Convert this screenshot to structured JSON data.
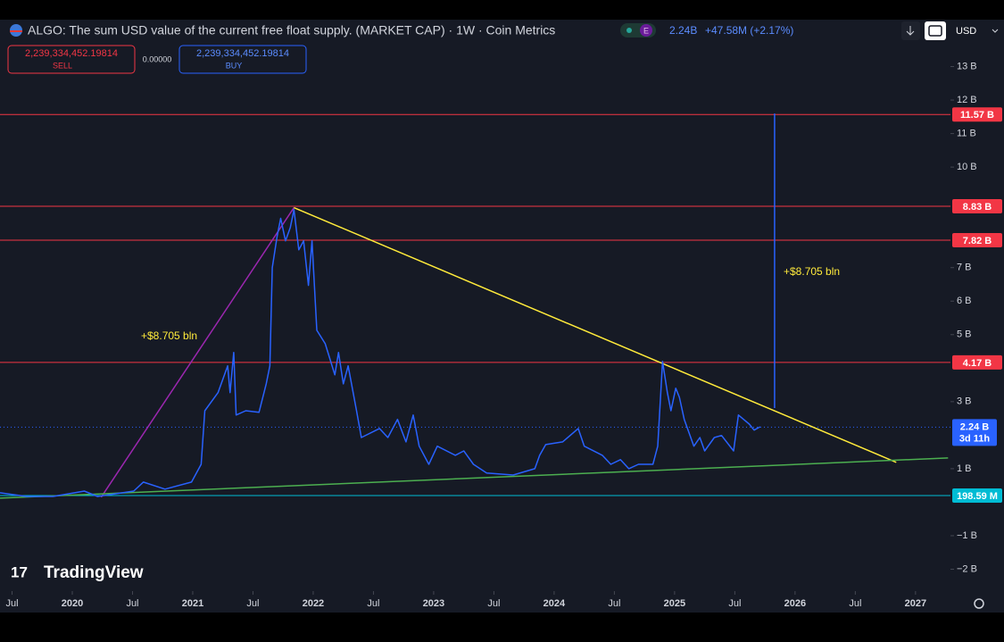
{
  "header": {
    "last": "2.24B",
    "change": "+47.58M (+2.17%)",
    "badge": "E",
    "sell_price": "2,239,334,452.19814",
    "sell": "SELL",
    "spread": "0.00000",
    "buy_price": "2,239,334,452.19814",
    "buy": "BUY",
    "currency": "USD",
    "logo": "TradingView"
  },
  "chart_data": {
    "type": "line",
    "title": "ALGO: The sum USD value of the current free float supply. (MARKET CAP) · 1W · Coin Metrics",
    "color": "#2962ff",
    "x": [
      2019.4,
      2019.62,
      2019.84,
      2020.1,
      2020.21,
      2020.36,
      2020.51,
      2020.59,
      2020.77,
      2020.99,
      2021.07,
      2021.1,
      2021.21,
      2021.29,
      2021.31,
      2021.34,
      2021.36,
      2021.44,
      2021.55,
      2021.61,
      2021.64,
      2021.66,
      2021.7,
      2021.73,
      2021.77,
      2021.81,
      2021.84,
      2021.88,
      2021.92,
      2021.96,
      2021.99,
      2022.03,
      2022.1,
      2022.18,
      2022.21,
      2022.25,
      2022.29,
      2022.36,
      2022.4,
      2022.55,
      2022.62,
      2022.7,
      2022.77,
      2022.83,
      2022.88,
      2022.96,
      2023.03,
      2023.18,
      2023.25,
      2023.33,
      2023.44,
      2023.66,
      2023.84,
      2023.88,
      2023.93,
      2024.07,
      2024.2,
      2024.25,
      2024.4,
      2024.47,
      2024.55,
      2024.62,
      2024.7,
      2024.82,
      2024.86,
      2024.9,
      2024.94,
      2024.97,
      2025.01,
      2025.04,
      2025.08,
      2025.16,
      2025.21,
      2025.25,
      2025.33,
      2025.39,
      2025.49,
      2025.53,
      2025.62,
      2025.66,
      2025.71
    ],
    "values": [
      0.28,
      0.17,
      0.17,
      0.33,
      0.17,
      0.25,
      0.33,
      0.6,
      0.39,
      0.6,
      1.13,
      2.73,
      3.27,
      4.07,
      3.27,
      4.47,
      2.6,
      2.73,
      2.68,
      3.53,
      4.07,
      7.0,
      7.93,
      8.47,
      7.8,
      8.2,
      8.73,
      7.53,
      7.8,
      6.47,
      7.8,
      5.13,
      4.73,
      3.8,
      4.47,
      3.53,
      4.07,
      2.73,
      1.93,
      2.2,
      1.93,
      2.47,
      1.8,
      2.6,
      1.67,
      1.13,
      1.67,
      1.4,
      1.53,
      1.13,
      0.87,
      0.81,
      1.0,
      1.4,
      1.72,
      1.8,
      2.2,
      1.67,
      1.4,
      1.13,
      1.27,
      1.0,
      1.13,
      1.13,
      1.67,
      4.2,
      3.27,
      2.73,
      3.4,
      3.13,
      2.47,
      1.67,
      1.93,
      1.53,
      1.93,
      1.99,
      1.53,
      2.6,
      2.33,
      2.15,
      2.25
    ],
    "xlim": [
      2019.4,
      2027.29
    ],
    "xticks": [
      {
        "value": 2019.5,
        "label": "Jul"
      },
      2020,
      {
        "value": 2020.5,
        "label": "Jul"
      },
      2021,
      {
        "value": 2021.5,
        "label": "Jul"
      },
      2022,
      {
        "value": 2022.5,
        "label": "Jul"
      },
      2023,
      {
        "value": 2023.5,
        "label": "Jul"
      },
      2024,
      {
        "value": 2024.5,
        "label": "Jul"
      },
      2025,
      {
        "value": 2025.5,
        "label": "Jul"
      },
      2026,
      {
        "value": 2026.5,
        "label": "Jul"
      },
      2027
    ],
    "ylim": [
      -2.6,
      14.4
    ],
    "yticks": [
      {
        "value": 13,
        "label": "13 B"
      },
      {
        "value": 12,
        "label": "12 B"
      },
      {
        "value": 11,
        "label": "11 B"
      },
      {
        "value": 10,
        "label": "10 B"
      },
      {
        "value": 7,
        "label": "7 B"
      },
      {
        "value": 6,
        "label": "6 B"
      },
      {
        "value": 5,
        "label": "5 B"
      },
      {
        "value": 3,
        "label": "3 B"
      },
      {
        "value": 1,
        "label": "1 B"
      },
      {
        "value": -1,
        "label": "−1 B"
      },
      {
        "value": -2,
        "label": "−2 B"
      }
    ],
    "levels": [
      {
        "value": 11.57,
        "label": "11.57 B",
        "color": "#f23645"
      },
      {
        "value": 8.83,
        "label": "8.83 B",
        "color": "#f23645"
      },
      {
        "value": 7.82,
        "label": "7.82 B",
        "color": "#f23645"
      },
      {
        "value": 4.17,
        "label": "4.17 B",
        "color": "#f23645"
      },
      {
        "value": 0.19859,
        "label": "198.59 M",
        "color": "#00bcd4"
      }
    ],
    "last": {
      "value": 2.24,
      "label": "2.24 B",
      "countdown": "3d 11h",
      "color": "#2962ff"
    },
    "trendlines": [
      {
        "color": "#9c27b0",
        "x": [
          2020.24,
          2021.84
        ],
        "y": [
          0.15,
          8.79
        ]
      },
      {
        "color": "#ffeb3b",
        "x": [
          2021.84,
          2026.84
        ],
        "y": [
          8.79,
          1.19
        ]
      },
      {
        "color": "#4caf50",
        "x": [
          2019.4,
          2027.27
        ],
        "y": [
          0.12,
          1.32
        ]
      },
      {
        "color": "#2962ff",
        "x": [
          2025.83,
          2025.83
        ],
        "y": [
          11.6,
          2.81
        ]
      }
    ],
    "annotations": [
      "+$8.705 bln",
      "+$8.705 bln"
    ]
  }
}
